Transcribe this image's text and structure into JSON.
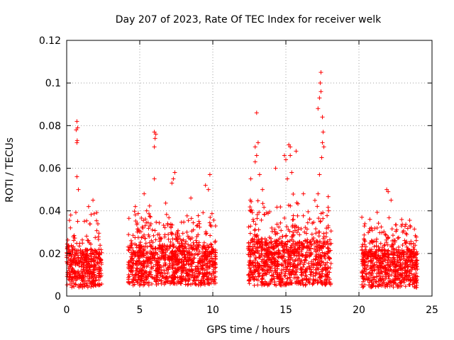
{
  "chart_data": {
    "type": "scatter",
    "title": "Day 207 of 2023, Rate Of TEC Index for receiver welk",
    "xlabel": "GPS time / hours",
    "ylabel": "ROTI / TECUs",
    "xlim": [
      0,
      25
    ],
    "ylim": [
      0,
      0.12
    ],
    "xticks": [
      0,
      5,
      10,
      15,
      20,
      25
    ],
    "yticks": [
      0,
      0.02,
      0.04,
      0.06,
      0.08,
      0.1,
      0.12
    ],
    "xtick_labels": [
      "0",
      "5",
      "10",
      "15",
      "20",
      "25"
    ],
    "ytick_labels": [
      "0",
      "0.02",
      "0.04",
      "0.06",
      "0.08",
      "0.1",
      "0.12"
    ],
    "grid": true,
    "marker": "plus",
    "series_color": "#ff0000",
    "segments": [
      {
        "x_range": [
          0.0,
          2.4
        ],
        "base": [
          0.004,
          0.022
        ],
        "spread": 0.018
      },
      {
        "x_range": [
          4.2,
          10.2
        ],
        "base": [
          0.005,
          0.024
        ],
        "spread": 0.02
      },
      {
        "x_range": [
          12.4,
          18.1
        ],
        "base": [
          0.005,
          0.026
        ],
        "spread": 0.022
      },
      {
        "x_range": [
          20.2,
          24.0
        ],
        "base": [
          0.004,
          0.022
        ],
        "spread": 0.018
      }
    ],
    "notable_points": [
      {
        "x": 0.7,
        "y": 0.082
      },
      {
        "x": 0.75,
        "y": 0.079
      },
      {
        "x": 0.65,
        "y": 0.078
      },
      {
        "x": 0.7,
        "y": 0.072
      },
      {
        "x": 0.72,
        "y": 0.073
      },
      {
        "x": 0.7,
        "y": 0.056
      },
      {
        "x": 0.8,
        "y": 0.05
      },
      {
        "x": 1.8,
        "y": 0.045
      },
      {
        "x": 1.5,
        "y": 0.042
      },
      {
        "x": 4.7,
        "y": 0.042
      },
      {
        "x": 5.3,
        "y": 0.048
      },
      {
        "x": 6.0,
        "y": 0.077
      },
      {
        "x": 6.1,
        "y": 0.076
      },
      {
        "x": 6.05,
        "y": 0.074
      },
      {
        "x": 6.0,
        "y": 0.07
      },
      {
        "x": 6.0,
        "y": 0.055
      },
      {
        "x": 7.4,
        "y": 0.058
      },
      {
        "x": 7.3,
        "y": 0.055
      },
      {
        "x": 7.2,
        "y": 0.053
      },
      {
        "x": 9.8,
        "y": 0.057
      },
      {
        "x": 9.5,
        "y": 0.052
      },
      {
        "x": 9.7,
        "y": 0.05
      },
      {
        "x": 8.5,
        "y": 0.046
      },
      {
        "x": 12.6,
        "y": 0.055
      },
      {
        "x": 12.9,
        "y": 0.063
      },
      {
        "x": 13.0,
        "y": 0.086
      },
      {
        "x": 13.1,
        "y": 0.072
      },
      {
        "x": 12.9,
        "y": 0.07
      },
      {
        "x": 13.0,
        "y": 0.066
      },
      {
        "x": 13.2,
        "y": 0.057
      },
      {
        "x": 13.4,
        "y": 0.05
      },
      {
        "x": 14.3,
        "y": 0.06
      },
      {
        "x": 14.9,
        "y": 0.066
      },
      {
        "x": 15.0,
        "y": 0.064
      },
      {
        "x": 15.2,
        "y": 0.071
      },
      {
        "x": 15.3,
        "y": 0.07
      },
      {
        "x": 15.3,
        "y": 0.066
      },
      {
        "x": 15.7,
        "y": 0.068
      },
      {
        "x": 15.4,
        "y": 0.058
      },
      {
        "x": 15.1,
        "y": 0.055
      },
      {
        "x": 16.2,
        "y": 0.048
      },
      {
        "x": 17.2,
        "y": 0.088
      },
      {
        "x": 17.3,
        "y": 0.093
      },
      {
        "x": 17.4,
        "y": 0.096
      },
      {
        "x": 17.35,
        "y": 0.1
      },
      {
        "x": 17.4,
        "y": 0.105
      },
      {
        "x": 17.5,
        "y": 0.084
      },
      {
        "x": 17.55,
        "y": 0.077
      },
      {
        "x": 17.5,
        "y": 0.072
      },
      {
        "x": 17.6,
        "y": 0.07
      },
      {
        "x": 17.45,
        "y": 0.065
      },
      {
        "x": 17.3,
        "y": 0.057
      },
      {
        "x": 17.2,
        "y": 0.048
      },
      {
        "x": 20.2,
        "y": 0.037
      },
      {
        "x": 21.9,
        "y": 0.05
      },
      {
        "x": 22.0,
        "y": 0.049
      },
      {
        "x": 22.2,
        "y": 0.045
      },
      {
        "x": 23.5,
        "y": 0.033
      },
      {
        "x": 23.0,
        "y": 0.03
      }
    ]
  }
}
